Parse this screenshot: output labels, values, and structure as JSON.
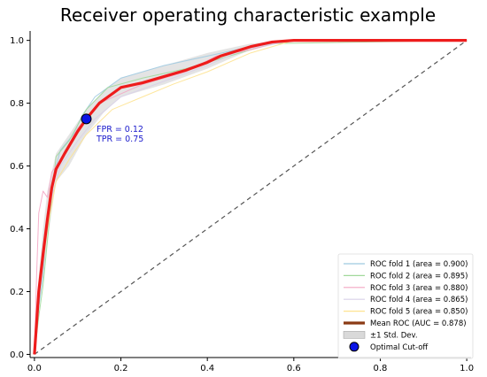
{
  "chart_data": {
    "type": "line",
    "title": "Receiver operating characteristic example",
    "xlabel": "",
    "ylabel": "",
    "xlim": [
      -0.01,
      1.01
    ],
    "ylim": [
      -0.01,
      1.03
    ],
    "xticks": [
      "0.0",
      "0.2",
      "0.4",
      "0.6",
      "0.8",
      "1.0"
    ],
    "yticks": [
      "0.0",
      "0.2",
      "0.4",
      "0.6",
      "0.8",
      "1.0"
    ],
    "grid": false,
    "legend_position": "lower-right",
    "series": [
      {
        "name": "ROC fold 1 (area = 0.900)",
        "color": "#9ecae1",
        "x": [
          0,
          0.01,
          0.02,
          0.03,
          0.05,
          0.06,
          0.09,
          0.11,
          0.14,
          0.2,
          0.3,
          0.4,
          0.5,
          0.6,
          1.0
        ],
        "y": [
          0,
          0.15,
          0.25,
          0.45,
          0.6,
          0.65,
          0.7,
          0.76,
          0.82,
          0.88,
          0.92,
          0.95,
          0.98,
          1.0,
          1.0
        ]
      },
      {
        "name": "ROC fold 2 (area = 0.895)",
        "color": "#a1d99b",
        "x": [
          0,
          0.01,
          0.02,
          0.04,
          0.05,
          0.08,
          0.12,
          0.17,
          0.25,
          0.35,
          0.45,
          0.55,
          1.0
        ],
        "y": [
          0,
          0.12,
          0.22,
          0.5,
          0.63,
          0.68,
          0.78,
          0.85,
          0.88,
          0.91,
          0.95,
          0.99,
          1.0
        ]
      },
      {
        "name": "ROC fold 3 (area = 0.880)",
        "color": "#f4a6c4",
        "x": [
          0,
          0.005,
          0.01,
          0.02,
          0.03,
          0.04,
          0.06,
          0.1,
          0.15,
          0.25,
          0.35,
          0.42,
          0.5,
          0.58,
          1.0
        ],
        "y": [
          0,
          0.25,
          0.45,
          0.52,
          0.5,
          0.58,
          0.62,
          0.72,
          0.8,
          0.86,
          0.9,
          0.95,
          0.97,
          1.0,
          1.0
        ]
      },
      {
        "name": "ROC fold 4 (area = 0.865)",
        "color": "#d9d0e8",
        "x": [
          0,
          0.01,
          0.02,
          0.04,
          0.06,
          0.1,
          0.14,
          0.2,
          0.3,
          0.4,
          0.48,
          0.6,
          1.0
        ],
        "y": [
          0,
          0.2,
          0.35,
          0.5,
          0.6,
          0.68,
          0.75,
          0.82,
          0.87,
          0.92,
          0.97,
          1.0,
          1.0
        ]
      },
      {
        "name": "ROC fold 5 (area = 0.850)",
        "color": "#fee391",
        "x": [
          0,
          0.01,
          0.03,
          0.05,
          0.08,
          0.12,
          0.18,
          0.25,
          0.32,
          0.4,
          0.5,
          0.6,
          1.0
        ],
        "y": [
          0,
          0.18,
          0.4,
          0.55,
          0.62,
          0.7,
          0.78,
          0.82,
          0.86,
          0.9,
          0.96,
          1.0,
          1.0
        ]
      },
      {
        "name": "Mean ROC (AUC = 0.878)",
        "color": "#ee1c1c",
        "x": [
          0,
          0.01,
          0.02,
          0.03,
          0.04,
          0.05,
          0.07,
          0.1,
          0.12,
          0.15,
          0.2,
          0.25,
          0.3,
          0.35,
          0.4,
          0.43,
          0.5,
          0.55,
          0.6,
          0.7,
          0.8,
          0.9,
          1.0
        ],
        "y": [
          0,
          0.2,
          0.32,
          0.43,
          0.53,
          0.59,
          0.64,
          0.71,
          0.75,
          0.8,
          0.85,
          0.865,
          0.885,
          0.905,
          0.93,
          0.95,
          0.98,
          0.995,
          1.0,
          1.0,
          1.0,
          1.0,
          1.0
        ]
      }
    ],
    "std_band": {
      "name": "±1 Std. Dev.",
      "color": "#b3b3b3",
      "x": [
        0,
        0.01,
        0.02,
        0.03,
        0.05,
        0.08,
        0.12,
        0.16,
        0.2,
        0.3,
        0.4,
        0.5,
        0.6,
        1.0
      ],
      "upper": [
        0.05,
        0.25,
        0.4,
        0.52,
        0.64,
        0.7,
        0.78,
        0.84,
        0.88,
        0.92,
        0.96,
        0.99,
        1.0,
        1.0
      ],
      "lower": [
        0,
        0.15,
        0.25,
        0.36,
        0.55,
        0.6,
        0.7,
        0.77,
        0.82,
        0.86,
        0.91,
        0.97,
        1.0,
        1.0
      ]
    },
    "diagonal": {
      "x": [
        0,
        1
      ],
      "y": [
        0,
        1
      ],
      "style": "dashed",
      "color": "#555555"
    },
    "optimal_point": {
      "name": "Optimal Cut-off",
      "x": 0.12,
      "y": 0.75,
      "color": "#0a14e6",
      "annotation": [
        "FPR = 0.12",
        "TPR = 0.75"
      ]
    }
  }
}
